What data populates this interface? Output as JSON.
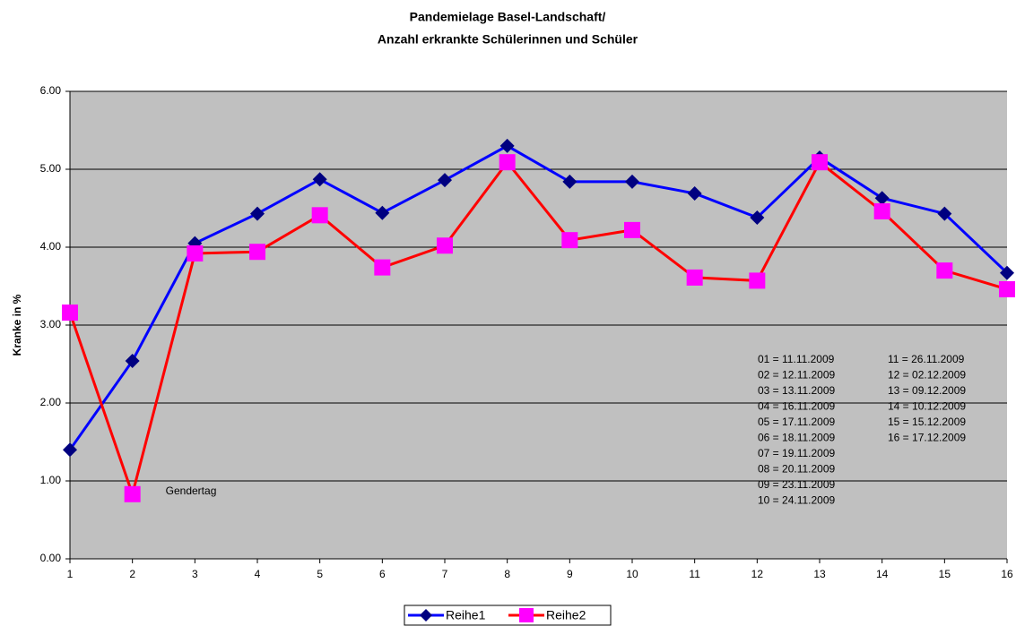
{
  "chart_data": {
    "type": "line",
    "title": [
      "Pandemielage Basel-Landschaft/",
      "Anzahl erkrankte Schülerinnen und Schüler"
    ],
    "y_label": "Kranke in %",
    "x": [
      1,
      2,
      3,
      4,
      5,
      6,
      7,
      8,
      9,
      10,
      11,
      12,
      13,
      14,
      15,
      16
    ],
    "xlim": [
      1,
      16
    ],
    "xticks": [
      1,
      2,
      3,
      4,
      5,
      6,
      7,
      8,
      9,
      10,
      11,
      12,
      13,
      14,
      15,
      16
    ],
    "ylim": [
      0,
      6
    ],
    "yticks": [
      {
        "value": 0,
        "label": "0.00"
      },
      {
        "value": 1,
        "label": "1.00"
      },
      {
        "value": 2,
        "label": "2.00"
      },
      {
        "value": 3,
        "label": "3.00"
      },
      {
        "value": 4,
        "label": "4.00"
      },
      {
        "value": 5,
        "label": "5.00"
      },
      {
        "value": 6,
        "label": "6.00"
      }
    ],
    "grid": true,
    "legend": "bottom",
    "series": [
      {
        "name": "Reihe1",
        "color": "#0000ff",
        "marker": "diamond",
        "marker_color": "#000080",
        "values": [
          1.4,
          2.54,
          4.05,
          4.43,
          4.87,
          4.44,
          4.86,
          5.3,
          4.84,
          4.84,
          4.69,
          4.38,
          5.15,
          4.63,
          4.43,
          3.67
        ]
      },
      {
        "name": "Reihe2",
        "color": "#ff0000",
        "marker": "square",
        "marker_color": "#ff00ff",
        "values": [
          3.16,
          0.83,
          3.92,
          3.94,
          4.41,
          3.74,
          4.02,
          5.09,
          4.09,
          4.22,
          3.61,
          3.57,
          5.09,
          4.46,
          3.7,
          3.46
        ]
      }
    ],
    "annotations": [
      {
        "text": "Gendertag",
        "x": 2,
        "y": 0.83
      }
    ],
    "notes": [
      [
        "01 = 11.11.2009",
        "02 = 12.11.2009",
        "03 = 13.11.2009",
        "04 = 16.11.2009",
        "05 = 17.11.2009",
        "06 = 18.11.2009",
        "07 = 19.11.2009",
        "08 = 20.11.2009",
        "09 = 23.11.2009",
        "10 = 24.11.2009"
      ],
      [
        "11 = 26.11.2009",
        "12 = 02.12.2009",
        "13 = 09.12.2009",
        "14 = 10.12.2009",
        "15 = 15.12.2009",
        "16 = 17.12.2009"
      ]
    ]
  }
}
